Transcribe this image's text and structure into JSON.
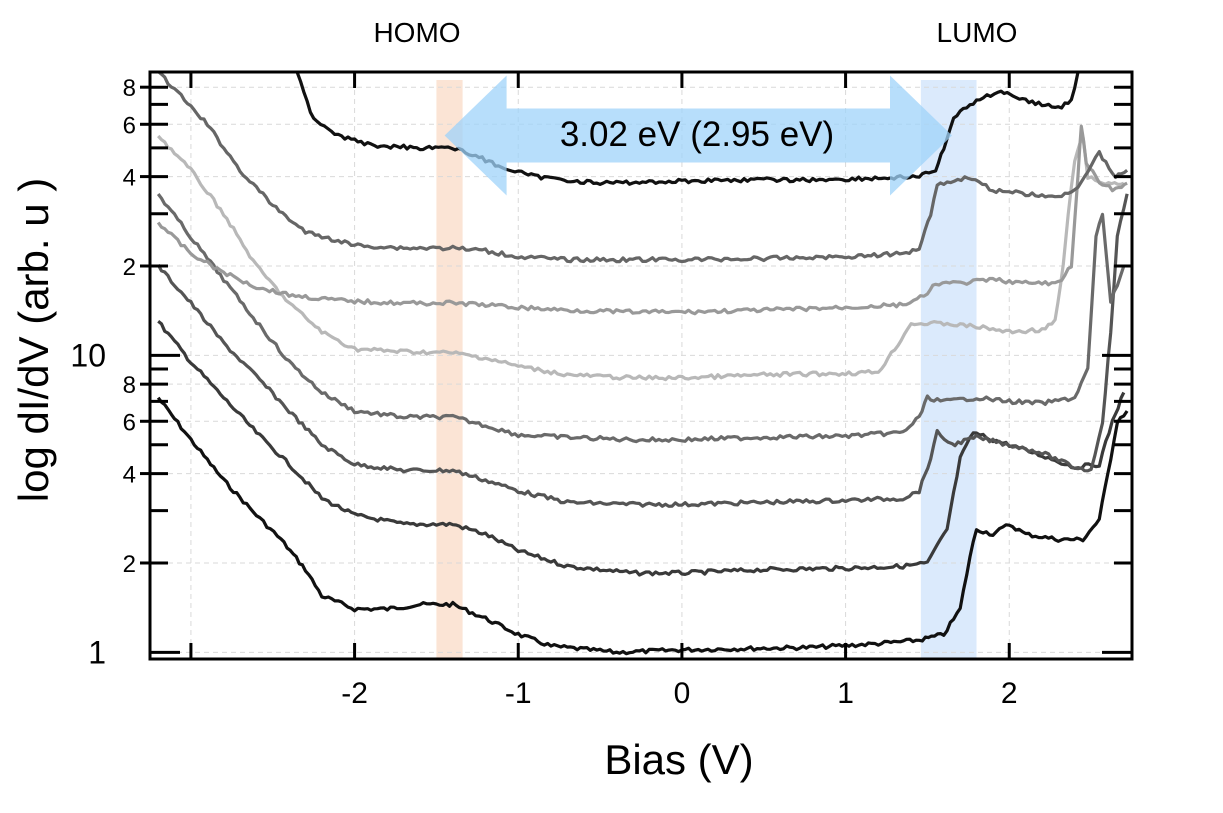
{
  "chart_data": {
    "type": "line",
    "title": "",
    "xlabel": "Bias (V)",
    "ylabel": "log dI/dV (arb. u )",
    "y_scale": "log",
    "xlim": [
      -3.25,
      2.75
    ],
    "ylim": [
      0.95,
      90
    ],
    "grid": true,
    "x_ticks": [
      -3,
      -2,
      -1,
      0,
      1,
      2
    ],
    "x_tick_labels": [
      "",
      "-2",
      "-1",
      "0",
      "1",
      "2"
    ],
    "y_major_ticks": [
      1,
      10
    ],
    "y_major_labels": [
      "1",
      "10"
    ],
    "y_minor_ticks": [
      2,
      4,
      6,
      8,
      20,
      40,
      60,
      80
    ],
    "y_minor_labels": [
      "2",
      "4",
      "6",
      "8",
      "2",
      "4",
      "6",
      "8"
    ],
    "annotations": {
      "homo_label": "HOMO",
      "lumo_label": "LUMO",
      "gap_label": "3.02 eV (2.95 eV)",
      "homo_band": [
        -1.5,
        -1.34
      ],
      "lumo_band": [
        1.46,
        1.8
      ],
      "arrow_span": [
        -1.45,
        1.65
      ],
      "arrow_y": 55
    },
    "colors": {
      "homo_band": "#fbe4d5",
      "lumo_band": "#dbeafc",
      "arrow": "#9fd3fa",
      "grid": "#d9d9d9"
    },
    "series": [
      {
        "color": "#111111",
        "points": [
          [
            -3.2,
            7.2
          ],
          [
            -3.0,
            5.2
          ],
          [
            -2.8,
            3.8
          ],
          [
            -2.6,
            2.9
          ],
          [
            -2.45,
            2.4
          ],
          [
            -2.3,
            1.9
          ],
          [
            -2.2,
            1.55
          ],
          [
            -2.0,
            1.4
          ],
          [
            -1.8,
            1.4
          ],
          [
            -1.6,
            1.45
          ],
          [
            -1.4,
            1.45
          ],
          [
            -1.2,
            1.3
          ],
          [
            -1.0,
            1.15
          ],
          [
            -0.8,
            1.05
          ],
          [
            -0.4,
            1.0
          ],
          [
            0.0,
            1.02
          ],
          [
            0.4,
            1.03
          ],
          [
            0.8,
            1.04
          ],
          [
            1.2,
            1.07
          ],
          [
            1.45,
            1.1
          ],
          [
            1.6,
            1.15
          ],
          [
            1.7,
            1.4
          ],
          [
            1.76,
            2.1
          ],
          [
            1.8,
            2.6
          ],
          [
            1.9,
            2.5
          ],
          [
            2.0,
            2.7
          ],
          [
            2.1,
            2.5
          ],
          [
            2.3,
            2.4
          ],
          [
            2.45,
            2.4
          ],
          [
            2.55,
            2.8
          ],
          [
            2.62,
            4.5
          ],
          [
            2.66,
            6.0
          ],
          [
            2.72,
            6.5
          ]
        ]
      },
      {
        "color": "#3a3a3a",
        "points": [
          [
            -3.2,
            13
          ],
          [
            -3.0,
            9.5
          ],
          [
            -2.8,
            7.2
          ],
          [
            -2.6,
            5.5
          ],
          [
            -2.4,
            4.3
          ],
          [
            -2.2,
            3.3
          ],
          [
            -2.0,
            2.9
          ],
          [
            -1.7,
            2.7
          ],
          [
            -1.4,
            2.7
          ],
          [
            -1.2,
            2.5
          ],
          [
            -1.0,
            2.2
          ],
          [
            -0.7,
            1.95
          ],
          [
            -0.3,
            1.85
          ],
          [
            0.0,
            1.85
          ],
          [
            0.5,
            1.9
          ],
          [
            1.0,
            1.92
          ],
          [
            1.35,
            1.95
          ],
          [
            1.5,
            2.0
          ],
          [
            1.62,
            2.6
          ],
          [
            1.7,
            4.5
          ],
          [
            1.78,
            5.5
          ],
          [
            1.9,
            5.2
          ],
          [
            2.0,
            5.0
          ],
          [
            2.2,
            4.6
          ],
          [
            2.4,
            4.2
          ],
          [
            2.55,
            4.3
          ],
          [
            2.63,
            6.0
          ],
          [
            2.7,
            7.5
          ]
        ]
      },
      {
        "color": "#555555",
        "points": [
          [
            -3.2,
            20
          ],
          [
            -3.0,
            15
          ],
          [
            -2.8,
            11
          ],
          [
            -2.6,
            8.5
          ],
          [
            -2.4,
            6.5
          ],
          [
            -2.2,
            5.0
          ],
          [
            -2.0,
            4.3
          ],
          [
            -1.7,
            4.1
          ],
          [
            -1.4,
            4.1
          ],
          [
            -1.2,
            3.8
          ],
          [
            -1.0,
            3.5
          ],
          [
            -0.7,
            3.2
          ],
          [
            -0.3,
            3.15
          ],
          [
            0.0,
            3.15
          ],
          [
            0.5,
            3.2
          ],
          [
            1.0,
            3.25
          ],
          [
            1.35,
            3.3
          ],
          [
            1.45,
            3.5
          ],
          [
            1.52,
            4.5
          ],
          [
            1.56,
            5.5
          ],
          [
            1.65,
            5.0
          ],
          [
            1.8,
            5.3
          ],
          [
            2.0,
            5.0
          ],
          [
            2.2,
            4.7
          ],
          [
            2.4,
            4.2
          ],
          [
            2.5,
            4.1
          ],
          [
            2.57,
            6.0
          ],
          [
            2.62,
            12
          ],
          [
            2.66,
            25
          ],
          [
            2.72,
            35
          ]
        ]
      },
      {
        "color": "#6a6a6a",
        "points": [
          [
            -3.2,
            35
          ],
          [
            -3.0,
            25
          ],
          [
            -2.8,
            18
          ],
          [
            -2.6,
            13
          ],
          [
            -2.4,
            9.5
          ],
          [
            -2.2,
            7.5
          ],
          [
            -2.0,
            6.5
          ],
          [
            -1.7,
            6.2
          ],
          [
            -1.4,
            6.2
          ],
          [
            -1.2,
            5.8
          ],
          [
            -1.0,
            5.4
          ],
          [
            -0.7,
            5.3
          ],
          [
            -0.3,
            5.2
          ],
          [
            0.0,
            5.2
          ],
          [
            0.5,
            5.3
          ],
          [
            1.0,
            5.35
          ],
          [
            1.35,
            5.5
          ],
          [
            1.45,
            6.2
          ],
          [
            1.5,
            7.2
          ],
          [
            1.6,
            7.0
          ],
          [
            1.8,
            7.2
          ],
          [
            2.0,
            7.0
          ],
          [
            2.2,
            6.9
          ],
          [
            2.4,
            7.2
          ],
          [
            2.48,
            9
          ],
          [
            2.53,
            25
          ],
          [
            2.57,
            30
          ],
          [
            2.62,
            15
          ],
          [
            2.7,
            20
          ]
        ]
      },
      {
        "color": "#b8b8b8",
        "points": [
          [
            -3.2,
            55
          ],
          [
            -3.0,
            42
          ],
          [
            -2.8,
            30
          ],
          [
            -2.6,
            20
          ],
          [
            -2.4,
            15
          ],
          [
            -2.2,
            12
          ],
          [
            -2.0,
            10.5
          ],
          [
            -1.7,
            10.3
          ],
          [
            -1.4,
            10.2
          ],
          [
            -1.2,
            9.8
          ],
          [
            -1.0,
            9.2
          ],
          [
            -0.7,
            8.6
          ],
          [
            -0.3,
            8.4
          ],
          [
            0.0,
            8.4
          ],
          [
            0.5,
            8.6
          ],
          [
            1.0,
            8.7
          ],
          [
            1.2,
            8.8
          ],
          [
            1.3,
            10.5
          ],
          [
            1.4,
            12.8
          ],
          [
            1.6,
            12.8
          ],
          [
            1.8,
            12.5
          ],
          [
            2.0,
            12.0
          ],
          [
            2.2,
            12.2
          ],
          [
            2.28,
            13
          ],
          [
            2.33,
            20
          ],
          [
            2.36,
            30
          ],
          [
            2.4,
            45
          ],
          [
            2.45,
            55
          ],
          [
            2.48,
            40
          ],
          [
            2.55,
            38
          ],
          [
            2.7,
            38
          ]
        ]
      },
      {
        "color": "#999999",
        "points": [
          [
            -3.2,
            28
          ],
          [
            -3.0,
            22
          ],
          [
            -2.8,
            19
          ],
          [
            -2.6,
            17
          ],
          [
            -2.4,
            16
          ],
          [
            -2.2,
            15.5
          ],
          [
            -2.0,
            15.2
          ],
          [
            -1.7,
            15.0
          ],
          [
            -1.4,
            15.0
          ],
          [
            -1.2,
            14.8
          ],
          [
            -1.0,
            14.5
          ],
          [
            -0.7,
            14.2
          ],
          [
            -0.3,
            14.0
          ],
          [
            0.0,
            14.0
          ],
          [
            0.5,
            14.2
          ],
          [
            1.0,
            14.5
          ],
          [
            1.35,
            14.8
          ],
          [
            1.5,
            16
          ],
          [
            1.55,
            17.5
          ],
          [
            1.7,
            17.5
          ],
          [
            1.9,
            18.0
          ],
          [
            2.1,
            17.5
          ],
          [
            2.3,
            17.5
          ],
          [
            2.38,
            20
          ],
          [
            2.42,
            40
          ],
          [
            2.44,
            60
          ],
          [
            2.47,
            45
          ],
          [
            2.55,
            38
          ],
          [
            2.65,
            36
          ],
          [
            2.72,
            38
          ]
        ]
      },
      {
        "color": "#666666",
        "points": [
          [
            -3.2,
            90
          ],
          [
            -2.9,
            60
          ],
          [
            -2.7,
            42
          ],
          [
            -2.5,
            32
          ],
          [
            -2.3,
            26
          ],
          [
            -2.0,
            23.5
          ],
          [
            -1.7,
            23
          ],
          [
            -1.4,
            23
          ],
          [
            -1.2,
            22.5
          ],
          [
            -1.0,
            21.5
          ],
          [
            -0.7,
            21
          ],
          [
            -0.3,
            21
          ],
          [
            0.0,
            21
          ],
          [
            0.5,
            21.2
          ],
          [
            1.0,
            21.5
          ],
          [
            1.35,
            22
          ],
          [
            1.45,
            23
          ],
          [
            1.52,
            30
          ],
          [
            1.56,
            38
          ],
          [
            1.62,
            38
          ],
          [
            1.75,
            40
          ],
          [
            1.9,
            36
          ],
          [
            2.1,
            35
          ],
          [
            2.3,
            34
          ],
          [
            2.4,
            36
          ],
          [
            2.46,
            40
          ],
          [
            2.55,
            48
          ],
          [
            2.65,
            40
          ],
          [
            2.72,
            42
          ]
        ]
      },
      {
        "color": "#111111",
        "points": [
          [
            -2.35,
            90
          ],
          [
            -2.25,
            62
          ],
          [
            -2.1,
            55
          ],
          [
            -1.9,
            51
          ],
          [
            -1.6,
            50
          ],
          [
            -1.45,
            50.5
          ],
          [
            -1.3,
            48
          ],
          [
            -1.1,
            43
          ],
          [
            -0.9,
            40
          ],
          [
            -0.5,
            38
          ],
          [
            -0.1,
            38.5
          ],
          [
            0.3,
            39
          ],
          [
            0.8,
            39
          ],
          [
            1.2,
            39.5
          ],
          [
            1.45,
            40
          ],
          [
            1.55,
            42
          ],
          [
            1.6,
            50
          ],
          [
            1.66,
            62
          ],
          [
            1.72,
            68
          ],
          [
            1.8,
            72
          ],
          [
            1.95,
            78
          ],
          [
            2.1,
            72
          ],
          [
            2.3,
            68
          ],
          [
            2.38,
            72
          ],
          [
            2.42,
            90
          ]
        ]
      }
    ]
  }
}
